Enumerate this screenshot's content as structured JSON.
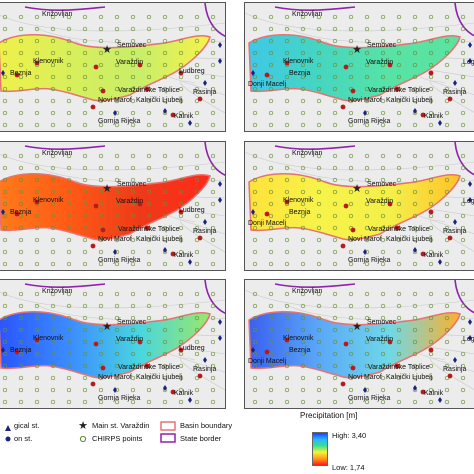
{
  "places": {
    "krizovljan": "Križovljan",
    "semovec": "Šemovec",
    "klenovnik": "Klenovnik",
    "varazdin": "Varaždin",
    "beznja": "Beznja",
    "ludbreg": "Ludbreg",
    "legrad": "Legrad",
    "donji_macelj": "Donji Macelj",
    "varazdinske_toplice": "Varaždinske Toplice",
    "novi_marof": "Novi Marof",
    "kalnicki_ljubelj": "Kalnički Ljubelj",
    "kalnik": "Kalnik",
    "rasinja": "Rasinja",
    "gornja_rijeka": "Gornja Rijeka",
    "ludb_short": "Ludbreg"
  },
  "legend": {
    "meteorological": "gical st.",
    "precipitation_st": "on st.",
    "main_station": "Main st. Varaždin",
    "chirps": "CHIRPS points",
    "basin_boundary": "Basin boundary",
    "state_border": "State border",
    "precip_title": "Precipitation [m]",
    "high": "High: 3,40",
    "low": "Low: 1,74"
  },
  "colors": {
    "basin_boundary": "#e57373",
    "state_border": "#8e24aa",
    "station_marker": "#1a237e",
    "main_station": "#222222"
  },
  "panels": [
    {
      "id": "p1",
      "palette": [
        "#f0f04a",
        "#d8ef5a",
        "#c8ee6a",
        "#f6f24a"
      ]
    },
    {
      "id": "p2",
      "palette": [
        "#3ec8e8",
        "#45d6c0",
        "#58e3a6",
        "#5ae3a0"
      ]
    },
    {
      "id": "p3",
      "palette": [
        "#ff7a1a",
        "#ff5a16",
        "#ee3a18",
        "#ff2a1a"
      ]
    },
    {
      "id": "p4",
      "palette": [
        "#ffe23a",
        "#f6f34a",
        "#f4f04a",
        "#ffc22a"
      ]
    },
    {
      "id": "p5",
      "palette": [
        "#2a55ff",
        "#3b8cff",
        "#48d6e0",
        "#9ae86a"
      ]
    },
    {
      "id": "p6",
      "palette": [
        "#3a60f0",
        "#5aa8f8",
        "#6fd8e8",
        "#ffb02a"
      ]
    }
  ]
}
